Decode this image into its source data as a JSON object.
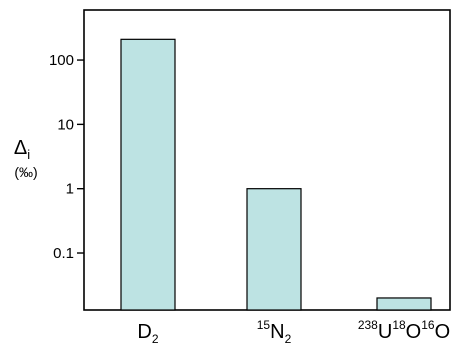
{
  "chart_data": {
    "type": "bar",
    "scale": "log",
    "ylim": [
      0.013,
      600
    ],
    "grid": false,
    "bar_color": "#bde3e3",
    "bar_edge_color": "#000000",
    "yticks": [
      {
        "value": 0.1,
        "label": "0.1"
      },
      {
        "value": 1,
        "label": "1"
      },
      {
        "value": 10,
        "label": "10"
      },
      {
        "value": 100,
        "label": "100"
      }
    ],
    "ylabel": {
      "symbol": "Δ",
      "subscript": "i",
      "unit": "(‰)"
    },
    "categories": [
      {
        "parts": [
          {
            "t": "D"
          },
          {
            "t": "2",
            "style": "sub"
          }
        ]
      },
      {
        "parts": [
          {
            "t": "15",
            "style": "sup"
          },
          {
            "t": "N"
          },
          {
            "t": "2",
            "style": "sub"
          }
        ]
      },
      {
        "parts": [
          {
            "t": "238",
            "style": "sup"
          },
          {
            "t": "U"
          },
          {
            "t": "18",
            "style": "sup"
          },
          {
            "t": "O"
          },
          {
            "t": "16",
            "style": "sup"
          },
          {
            "t": "O"
          }
        ]
      }
    ],
    "values": [
      210,
      1.0,
      0.02
    ]
  }
}
